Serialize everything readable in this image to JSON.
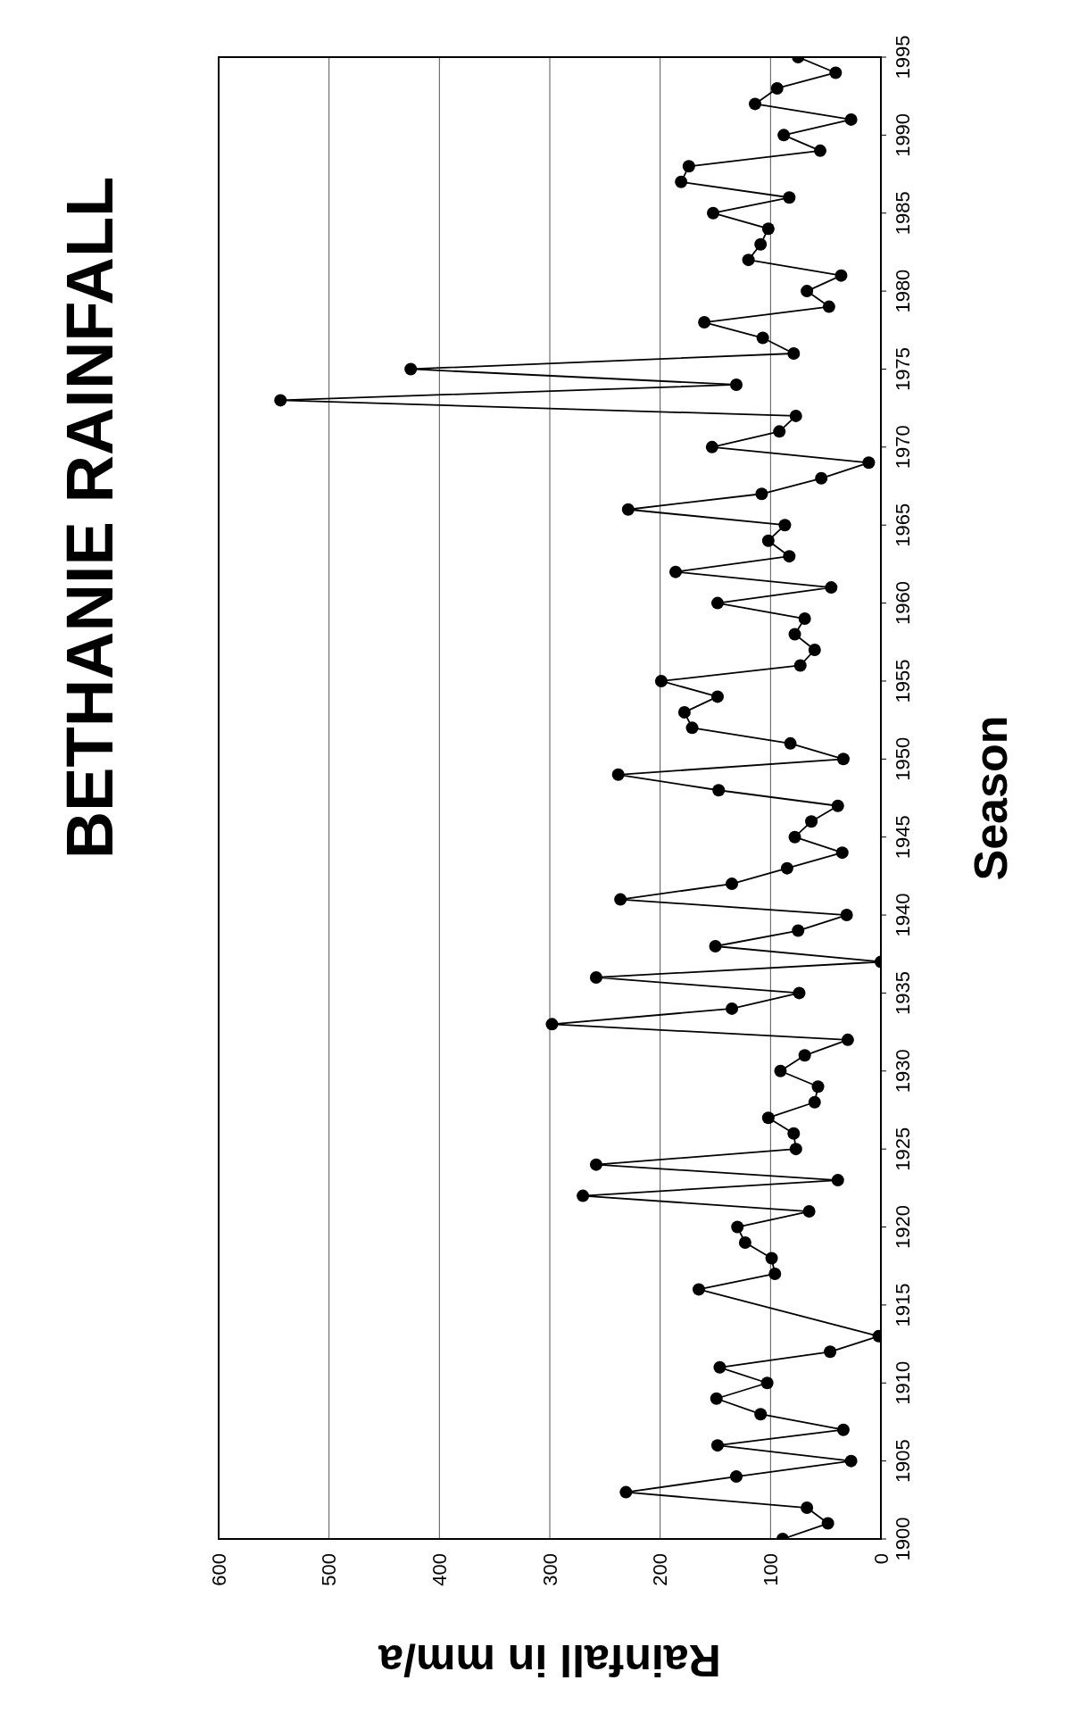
{
  "chart_data": {
    "type": "line",
    "orientation": "horizontal",
    "title": "BETHANIE RAINFALL",
    "xlabel": "Rainfall in mm/a",
    "ylabel": "Season",
    "x": [
      1900,
      1901,
      1902,
      1903,
      1904,
      1905,
      1906,
      1907,
      1908,
      1909,
      1910,
      1911,
      1912,
      1913,
      1914,
      1915,
      1916,
      1917,
      1918,
      1919,
      1920,
      1921,
      1922,
      1923,
      1924,
      1925,
      1926,
      1927,
      1928,
      1929,
      1930,
      1931,
      1932,
      1933,
      1934,
      1935,
      1936,
      1937,
      1938,
      1939,
      1940,
      1941,
      1942,
      1943,
      1944,
      1945,
      1946,
      1947,
      1948,
      1949,
      1950,
      1951,
      1952,
      1953,
      1954,
      1955,
      1956,
      1957,
      1958,
      1959,
      1960,
      1961,
      1962,
      1963,
      1964,
      1965,
      1966,
      1967,
      1968,
      1969,
      1970,
      1971,
      1972,
      1973,
      1974,
      1975,
      1976,
      1977,
      1978,
      1979,
      1980,
      1981,
      1982,
      1983,
      1984,
      1985,
      1986,
      1987,
      1988,
      1989,
      1990,
      1991,
      1992,
      1993,
      1994,
      1995
    ],
    "values": [
      89,
      48,
      67,
      231,
      131,
      27,
      148,
      34,
      109,
      149,
      103,
      146,
      46,
      2,
      null,
      null,
      165,
      96,
      99,
      123,
      130,
      65,
      270,
      39,
      258,
      77,
      79,
      102,
      60,
      57,
      91,
      69,
      30,
      298,
      135,
      74,
      258,
      0,
      150,
      75,
      31,
      236,
      135,
      85,
      35,
      78,
      63,
      39,
      147,
      238,
      34,
      82,
      171,
      178,
      148,
      199,
      73,
      60,
      78,
      69,
      148,
      45,
      186,
      83,
      102,
      87,
      229,
      108,
      54,
      11,
      153,
      92,
      77,
      544,
      131,
      426,
      79,
      107,
      160,
      47,
      67,
      36,
      120,
      109,
      102,
      152,
      83,
      181,
      174,
      55,
      88,
      27,
      114,
      94,
      41,
      75
    ],
    "color": "#000000",
    "xlim": [
      600,
      0
    ],
    "xticks": [
      0,
      100,
      200,
      300,
      400,
      500,
      600
    ],
    "ylim": [
      1900,
      1995
    ],
    "yticks": [
      1900,
      1905,
      1910,
      1915,
      1920,
      1925,
      1930,
      1935,
      1940,
      1945,
      1950,
      1955,
      1960,
      1965,
      1970,
      1975,
      1980,
      1985,
      1990,
      1995
    ],
    "grid": "x",
    "marker": "circle",
    "line_style": "solid"
  }
}
